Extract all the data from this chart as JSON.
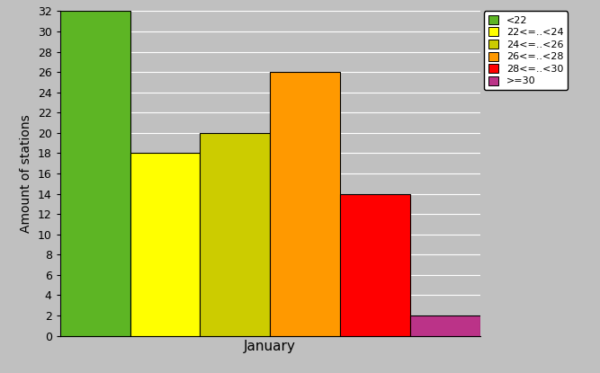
{
  "bars": [
    {
      "label": "<22",
      "value": 32,
      "color": "#5DB524"
    },
    {
      "label": "22<=..<24",
      "value": 18,
      "color": "#FFFF00"
    },
    {
      "label": "24<=..<26",
      "value": 20,
      "color": "#CCCC00"
    },
    {
      "label": "26<=..<28",
      "value": 26,
      "color": "#FF9900"
    },
    {
      "label": "28<=..<30",
      "value": 14,
      "color": "#FF0000"
    },
    {
      "label": ">=30",
      "value": 2,
      "color": "#BB3388"
    }
  ],
  "xlabel": "January",
  "ylabel": "Amount of stations",
  "ylim": [
    0,
    32
  ],
  "yticks": [
    0,
    2,
    4,
    6,
    8,
    10,
    12,
    14,
    16,
    18,
    20,
    22,
    24,
    26,
    28,
    30,
    32
  ],
  "bg_color": "#C0C0C0",
  "fig_width": 6.67,
  "fig_height": 4.15,
  "dpi": 100
}
